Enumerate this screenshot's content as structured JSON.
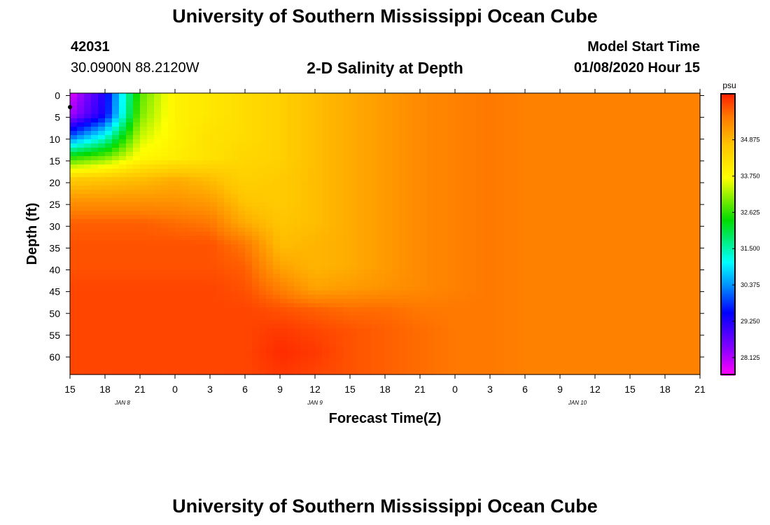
{
  "header": {
    "title": "University of Southern Mississippi Ocean Cube",
    "station_id": "42031",
    "coordinates": "30.0900N 88.2120W",
    "model_start_label": "Model Start Time",
    "model_start_value": "01/08/2020 Hour 15"
  },
  "footer": {
    "title": "University of Southern Mississippi Ocean Cube"
  },
  "chart_data": {
    "type": "heatmap",
    "title": "2-D Salinity at Depth",
    "xlabel": "Forecast Time(Z)",
    "ylabel": "Depth (ft)",
    "x_tick_labels": [
      "15",
      "18",
      "21",
      "0",
      "3",
      "6",
      "9",
      "12",
      "15",
      "18",
      "21",
      "0",
      "3",
      "6",
      "9",
      "12",
      "15",
      "18",
      "21"
    ],
    "x_range_hours": [
      0,
      54
    ],
    "date_labels": [
      {
        "label": "JAN 8",
        "hour": 4.5
      },
      {
        "label": "JAN 9",
        "hour": 21
      },
      {
        "label": "JAN 10",
        "hour": 43.5
      }
    ],
    "y_tick_labels": [
      "0",
      "5",
      "10",
      "15",
      "20",
      "25",
      "30",
      "35",
      "40",
      "45",
      "50",
      "55",
      "60"
    ],
    "y_range_ft": [
      0,
      65
    ],
    "colorbar": {
      "unit": "psu",
      "range": [
        27.6,
        36.3
      ],
      "tick_labels": [
        "34.875",
        "33.750",
        "32.625",
        "31.500",
        "30.375",
        "29.250",
        "28.125"
      ],
      "tick_values": [
        34.875,
        33.75,
        32.625,
        31.5,
        30.375,
        29.25,
        28.125
      ]
    },
    "salinity_grid": {
      "description": "Estimated salinity (psu): rows = depth ft, columns = forecast hour",
      "hours": [
        0,
        3,
        6,
        9,
        12,
        15,
        18,
        21,
        24,
        27,
        30,
        33,
        36,
        39,
        42,
        45,
        48,
        51,
        54
      ],
      "depths": [
        0,
        5,
        10,
        15,
        20,
        25,
        30,
        35,
        40,
        45,
        50,
        55,
        60,
        65
      ],
      "values": [
        [
          27.8,
          29.3,
          32.8,
          33.9,
          34.1,
          34.3,
          34.5,
          34.8,
          35.0,
          35.2,
          35.4,
          35.5,
          35.6,
          35.5,
          35.5,
          35.5,
          35.5,
          35.5,
          35.5
        ],
        [
          28.2,
          29.4,
          33.0,
          33.9,
          34.1,
          34.3,
          34.5,
          34.8,
          35.0,
          35.2,
          35.4,
          35.5,
          35.6,
          35.5,
          35.5,
          35.5,
          35.5,
          35.5,
          35.5
        ],
        [
          30.0,
          31.2,
          33.4,
          33.9,
          34.2,
          34.3,
          34.5,
          34.8,
          35.0,
          35.2,
          35.4,
          35.5,
          35.6,
          35.5,
          35.5,
          35.5,
          35.5,
          35.5,
          35.5
        ],
        [
          32.6,
          33.0,
          33.8,
          34.0,
          34.2,
          34.4,
          34.5,
          34.8,
          35.0,
          35.2,
          35.4,
          35.5,
          35.6,
          35.5,
          35.5,
          35.5,
          35.5,
          35.5,
          35.5
        ],
        [
          34.6,
          34.7,
          34.8,
          35.0,
          34.8,
          34.5,
          34.6,
          34.8,
          35.0,
          35.2,
          35.4,
          35.5,
          35.6,
          35.5,
          35.5,
          35.5,
          35.5,
          35.5,
          35.5
        ],
        [
          35.3,
          35.3,
          35.3,
          35.3,
          35.2,
          34.7,
          34.6,
          34.8,
          35.0,
          35.2,
          35.4,
          35.5,
          35.6,
          35.5,
          35.5,
          35.5,
          35.5,
          35.5,
          35.5
        ],
        [
          35.8,
          35.8,
          35.8,
          35.7,
          35.6,
          35.0,
          34.7,
          34.8,
          35.0,
          35.2,
          35.4,
          35.5,
          35.6,
          35.5,
          35.5,
          35.5,
          35.5,
          35.5,
          35.5
        ],
        [
          35.9,
          35.9,
          35.9,
          35.9,
          35.9,
          35.6,
          34.8,
          34.9,
          35.0,
          35.2,
          35.4,
          35.5,
          35.6,
          35.5,
          35.5,
          35.5,
          35.5,
          35.5,
          35.5
        ],
        [
          35.9,
          35.9,
          35.9,
          35.9,
          35.9,
          35.8,
          35.1,
          34.9,
          35.0,
          35.2,
          35.4,
          35.5,
          35.6,
          35.5,
          35.5,
          35.5,
          35.5,
          35.5,
          35.5
        ],
        [
          36.0,
          36.0,
          36.0,
          36.0,
          36.0,
          35.9,
          35.5,
          35.1,
          35.2,
          35.3,
          35.4,
          35.5,
          35.6,
          35.5,
          35.5,
          35.5,
          35.5,
          35.5,
          35.5
        ],
        [
          36.0,
          36.0,
          36.0,
          36.0,
          36.0,
          36.0,
          35.9,
          35.8,
          35.7,
          35.7,
          35.6,
          35.6,
          35.6,
          35.5,
          35.5,
          35.5,
          35.5,
          35.5,
          35.5
        ],
        [
          36.0,
          36.0,
          36.0,
          36.0,
          36.0,
          36.0,
          36.1,
          36.0,
          35.9,
          35.8,
          35.7,
          35.6,
          35.6,
          35.5,
          35.5,
          35.5,
          35.5,
          35.5,
          35.5
        ],
        [
          36.0,
          36.0,
          36.0,
          36.0,
          36.0,
          36.0,
          36.2,
          36.1,
          35.9,
          35.8,
          35.7,
          35.6,
          35.6,
          35.5,
          35.5,
          35.5,
          35.5,
          35.5,
          35.5
        ],
        [
          36.0,
          36.0,
          36.0,
          36.0,
          36.0,
          36.0,
          36.1,
          36.0,
          35.9,
          35.8,
          35.7,
          35.6,
          35.6,
          35.5,
          35.5,
          35.5,
          35.5,
          35.5,
          35.5
        ]
      ]
    }
  }
}
